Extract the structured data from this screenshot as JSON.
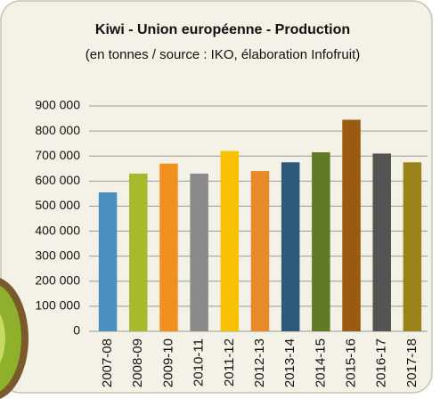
{
  "chart_data": {
    "type": "bar",
    "title": "Kiwi - Union européenne - Production",
    "subtitle": "(en tonnes / source :  IKO, élaboration Infofruit)",
    "categories": [
      "2007-08",
      "2008-09",
      "2009-10",
      "2010-11",
      "2011-12",
      "2012-13",
      "2013-14",
      "2014-15",
      "2015-16",
      "2016-17",
      "2017-18"
    ],
    "values": [
      555000,
      630000,
      670000,
      630000,
      720000,
      640000,
      675000,
      715000,
      845000,
      710000,
      675000
    ],
    "colors": [
      "#4a8fbf",
      "#a9b92c",
      "#f0901e",
      "#8a8a8a",
      "#f7c000",
      "#e8892c",
      "#2d5a78",
      "#5e7a22",
      "#9a5a12",
      "#545454",
      "#9a831a"
    ],
    "ylim": [
      0,
      900000
    ],
    "yticks": [
      0,
      {
        "value": 100000,
        "label": "100 000"
      },
      {
        "value": 200000,
        "label": "200 000"
      },
      {
        "value": 300000,
        "label": "300 000"
      },
      {
        "value": 400000,
        "label": "400 000"
      },
      {
        "value": 500000,
        "label": "500 000"
      },
      {
        "value": 600000,
        "label": "600 000"
      },
      {
        "value": 700000,
        "label": "700 000"
      },
      {
        "value": 800000,
        "label": "800 000"
      },
      {
        "value": 900000,
        "label": "900 000"
      }
    ],
    "grid": true
  }
}
